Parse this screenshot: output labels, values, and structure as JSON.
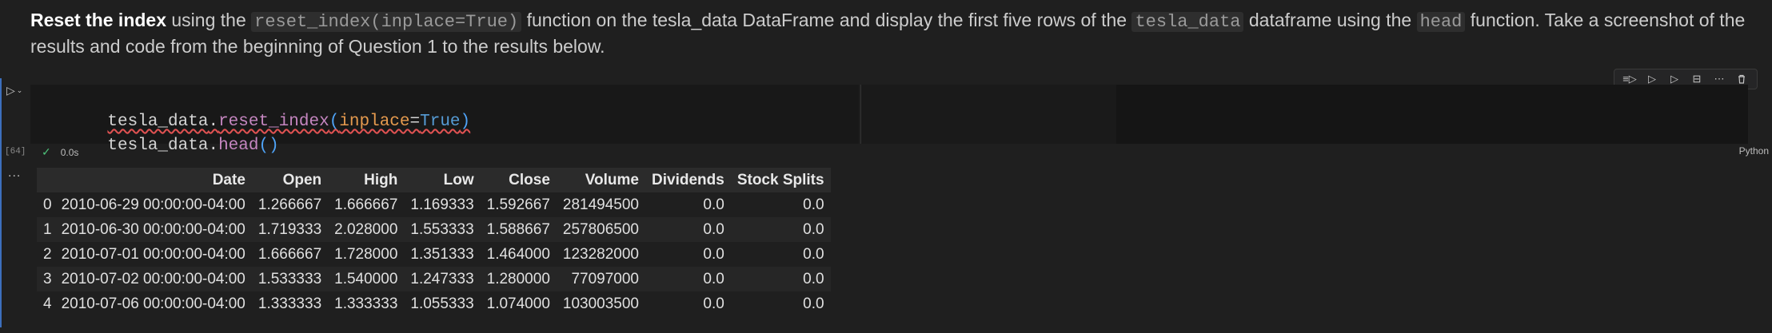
{
  "markdown": {
    "bold": "Reset the index",
    "t1": " using the ",
    "code1": "reset_index(inplace=True)",
    "t2": " function on the tesla_data DataFrame and display the first five rows of the ",
    "code2": "tesla_data",
    "t3": " dataframe using the ",
    "code3": "head",
    "t4": " function. Take a screenshot of the results and code from the beginning of Question 1 to the results below."
  },
  "cell": {
    "exec_count": "[64]",
    "exec_time": "0.0s",
    "language": "Python",
    "code": {
      "line1": {
        "obj": "tesla_data",
        "dot": ".",
        "fn": "reset_index",
        "open": "(",
        "kw": "inplace",
        "eq": "=",
        "val": "True",
        "close": ")"
      },
      "line2": {
        "obj": "tesla_data",
        "dot": ".",
        "fn": "head",
        "parens": "()"
      }
    }
  },
  "output": {
    "ellipsis": "...",
    "columns": [
      "",
      "Date",
      "Open",
      "High",
      "Low",
      "Close",
      "Volume",
      "Dividends",
      "Stock Splits"
    ],
    "rows": [
      [
        "0",
        "2010-06-29 00:00:00-04:00",
        "1.266667",
        "1.666667",
        "1.169333",
        "1.592667",
        "281494500",
        "0.0",
        "0.0"
      ],
      [
        "1",
        "2010-06-30 00:00:00-04:00",
        "1.719333",
        "2.028000",
        "1.553333",
        "1.588667",
        "257806500",
        "0.0",
        "0.0"
      ],
      [
        "2",
        "2010-07-01 00:00:00-04:00",
        "1.666667",
        "1.728000",
        "1.351333",
        "1.464000",
        "123282000",
        "0.0",
        "0.0"
      ],
      [
        "3",
        "2010-07-02 00:00:00-04:00",
        "1.533333",
        "1.540000",
        "1.247333",
        "1.280000",
        "77097000",
        "0.0",
        "0.0"
      ],
      [
        "4",
        "2010-07-06 00:00:00-04:00",
        "1.333333",
        "1.333333",
        "1.055333",
        "1.074000",
        "103003500",
        "0.0",
        "0.0"
      ]
    ]
  },
  "toolbar": {
    "icons": [
      "run-by-line-icon",
      "execute-above-icon",
      "execute-below-icon",
      "split-cell-icon",
      "more-actions-icon",
      "delete-icon"
    ],
    "glyphs": [
      "≡▷",
      "▷",
      "▷",
      "⊟",
      "⋯",
      "🗑"
    ]
  },
  "colors": {
    "accent": "#3c6fbd",
    "success": "#4ec27a",
    "function": "#c586c0",
    "keyword": "#e59a4e",
    "bool": "#569cd6"
  }
}
